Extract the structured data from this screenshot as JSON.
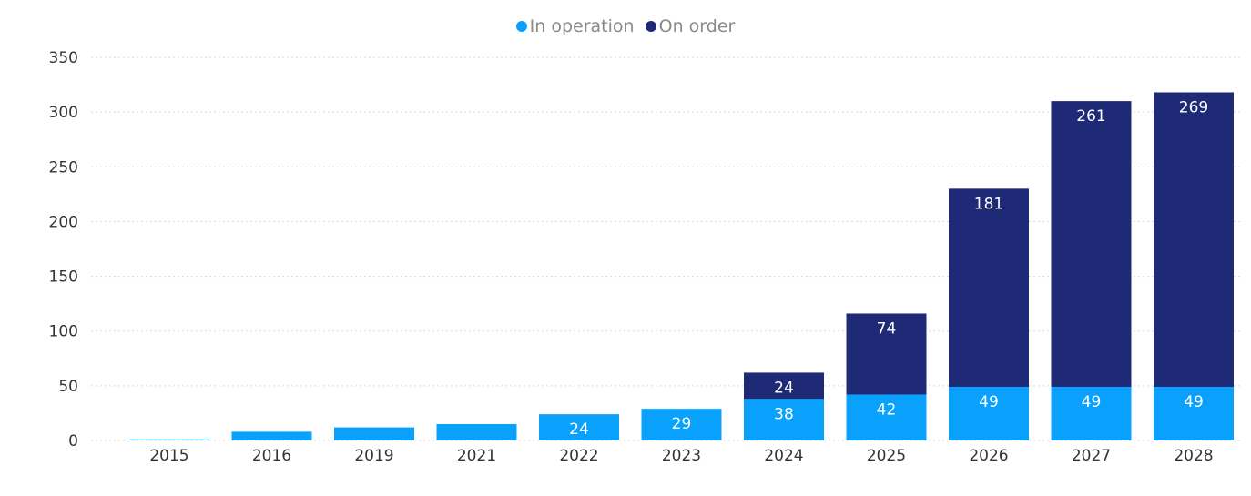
{
  "legend": [
    {
      "name": "In operation",
      "color": "#0AA1FC"
    },
    {
      "name": "On order",
      "color": "#1F2A77"
    }
  ],
  "chart_data": {
    "type": "bar",
    "stacked": true,
    "categories": [
      "2015",
      "2016",
      "2019",
      "2021",
      "2022",
      "2023",
      "2024",
      "2025",
      "2026",
      "2027",
      "2028"
    ],
    "series": [
      {
        "name": "In operation",
        "color": "#0AA1FC",
        "values": [
          1,
          8,
          12,
          15,
          24,
          29,
          38,
          42,
          49,
          49,
          49
        ],
        "labels": [
          "",
          "",
          "",
          "",
          "24",
          "29",
          "38",
          "42",
          "49",
          "49",
          "49"
        ]
      },
      {
        "name": "On order",
        "color": "#1F2A77",
        "values": [
          0,
          0,
          0,
          0,
          0,
          0,
          24,
          74,
          181,
          261,
          269
        ],
        "labels": [
          "",
          "",
          "",
          "",
          "",
          "",
          "24",
          "74",
          "181",
          "261",
          "269"
        ]
      }
    ],
    "ylim": [
      0,
      350
    ],
    "yticks": [
      "0",
      "50",
      "100",
      "150",
      "200",
      "250",
      "300",
      "350"
    ],
    "grid": true,
    "legend_position": "top-center"
  }
}
